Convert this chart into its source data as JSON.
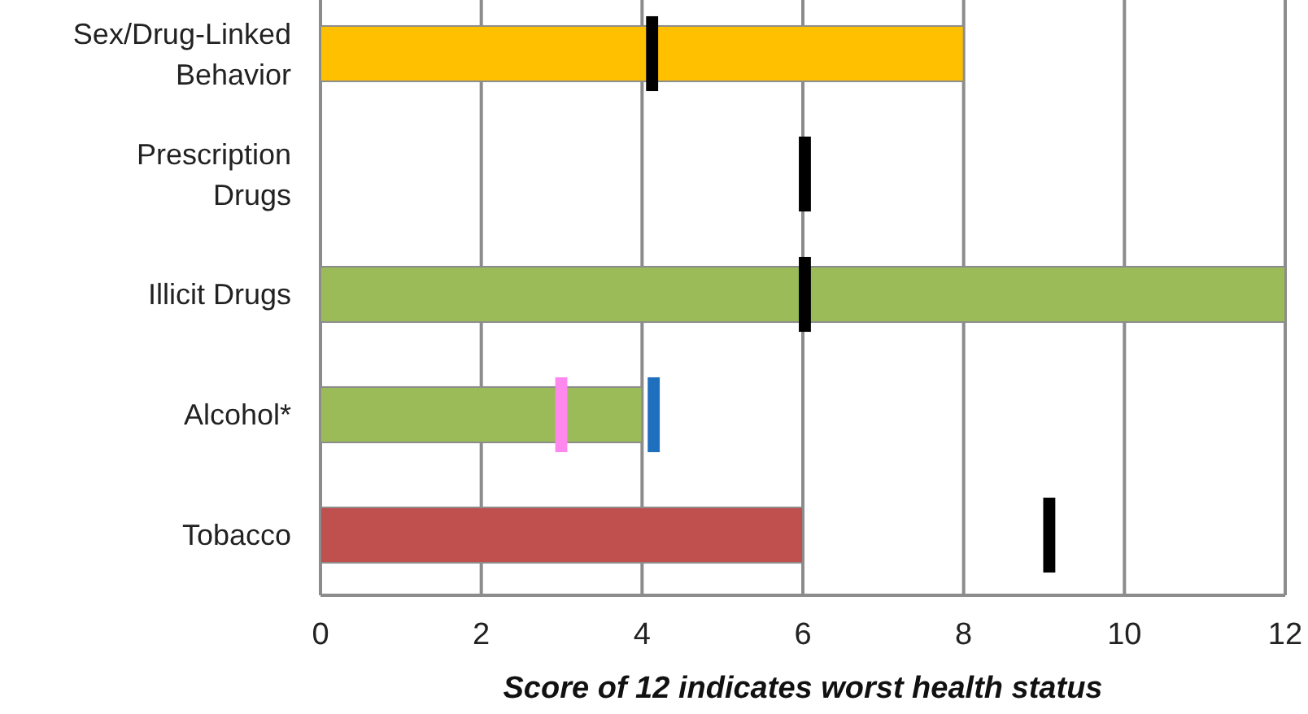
{
  "chart_data": {
    "type": "bar",
    "orientation": "horizontal",
    "categories": [
      "Sex/Drug-Linked Behavior",
      "Prescription Drugs",
      "Illicit Drugs",
      "Alcohol*",
      "Tobacco"
    ],
    "series": [
      {
        "values": [
          8,
          null,
          12,
          4,
          6
        ],
        "colors": [
          "#ffc000",
          null,
          "#9bbb59",
          "#9bbb59",
          "#c0504d"
        ]
      },
      {
        "type": "bar",
        "base": [
          4.05,
          5.95,
          5.95,
          4.07,
          8.99
        ],
        "values": [
          0.15,
          0.15,
          0.15,
          0.15,
          0.15
        ],
        "colors": [
          "#000000",
          "#000000",
          "#000000",
          "#1f6fbf",
          "#000000"
        ]
      },
      {
        "type": "bar",
        "base": [
          null,
          null,
          null,
          2.92,
          null
        ],
        "values": [
          null,
          null,
          null,
          0.15,
          null
        ],
        "color": "#ff88ee"
      }
    ],
    "xlabel": "Score of 12 indicates worst health status",
    "xlim": [
      0,
      12
    ],
    "xticks": [
      0,
      2,
      4,
      6,
      8,
      10,
      12
    ],
    "grid": "x"
  }
}
